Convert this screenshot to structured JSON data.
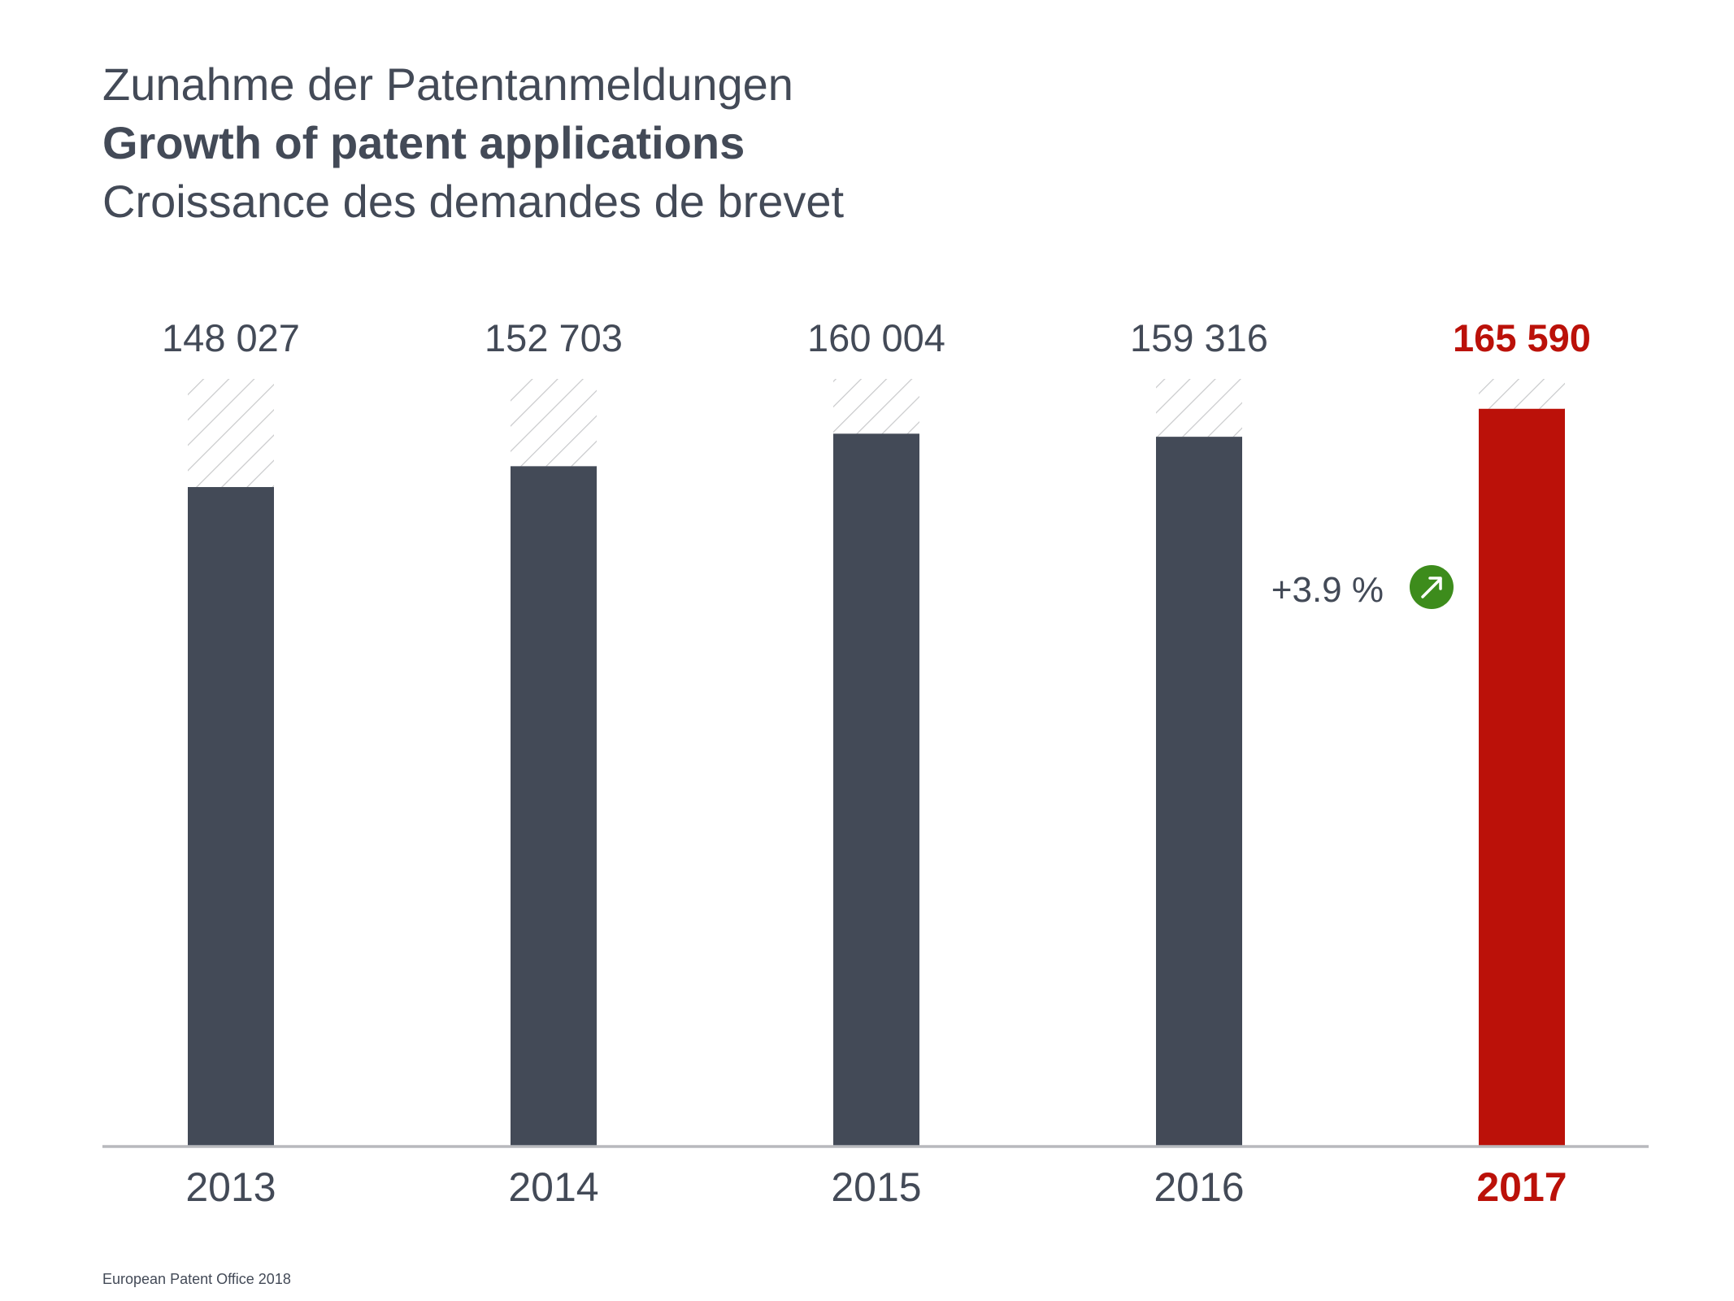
{
  "titles": {
    "de": "Zunahme der Patentanmeldungen",
    "en": "Growth of patent applications",
    "fr": "Croissance des demandes de brevet"
  },
  "chart_data": {
    "type": "bar",
    "categories": [
      "2013",
      "2014",
      "2015",
      "2016",
      "2017"
    ],
    "values": [
      148027,
      152703,
      160004,
      159316,
      165590
    ],
    "value_labels": [
      "148 027",
      "152 703",
      "160 004",
      "159 316",
      "165 590"
    ],
    "highlight_index": 4,
    "annotation": "+3.9 %",
    "ylim": [
      0,
      172300
    ],
    "grid": false,
    "legend": "none"
  },
  "colors": {
    "bar": "#434a57",
    "highlight": "#bb1109",
    "hatch": "#c8c9cb",
    "axis": "#b8b9bd",
    "growth_icon": "#3d8c1c"
  },
  "icons": {
    "growth": "arrow-up-right-icon"
  },
  "footer": "European Patent Office 2018"
}
